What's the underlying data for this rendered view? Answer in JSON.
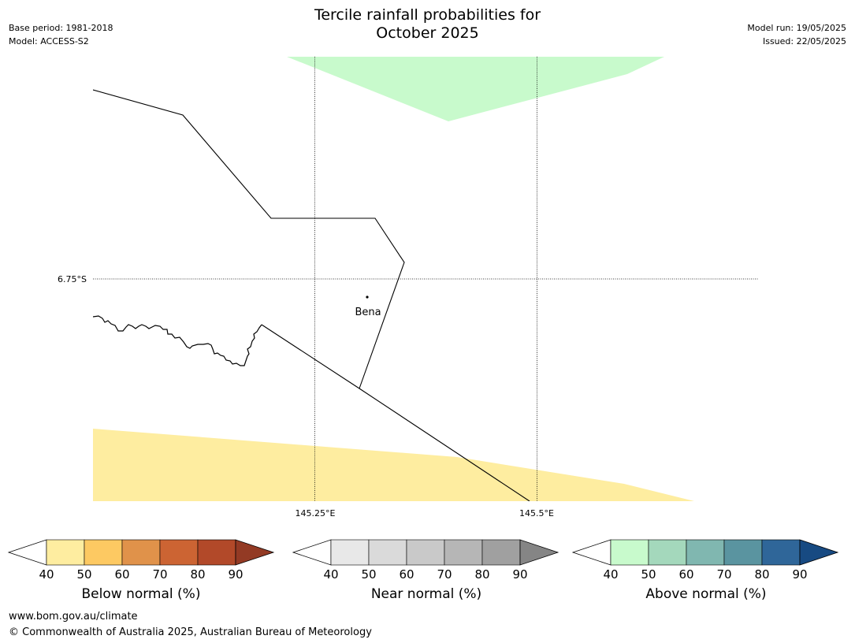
{
  "header": {
    "title_line1": "Tercile rainfall probabilities for",
    "title_line2": "October 2025",
    "base_period": "Base period: 1981-2018",
    "model": "Model: ACCESS-S2",
    "model_run": "Model run: 19/05/2025",
    "issued": "Issued: 22/05/2025"
  },
  "map": {
    "latitude_label": "6.75°S",
    "longitude_labels": [
      "145.25°E",
      "145.5°E"
    ],
    "place": "Bena",
    "regions": [
      {
        "category": "above normal",
        "probability_band": "40-50",
        "color": "#c8facc"
      },
      {
        "category": "below normal",
        "probability_band": "40-50",
        "color": "#feeda0"
      }
    ]
  },
  "legends": [
    {
      "title": "Below normal (%)",
      "ticks": [
        "40",
        "50",
        "60",
        "70",
        "80",
        "90"
      ],
      "colors": [
        "#ffffff",
        "#feeda0",
        "#fdc962",
        "#e0924a",
        "#cc6433",
        "#b24929",
        "#933a24"
      ]
    },
    {
      "title": "Near normal (%)",
      "ticks": [
        "40",
        "50",
        "60",
        "70",
        "80",
        "90"
      ],
      "colors": [
        "#ffffff",
        "#e8e8e8",
        "#dadada",
        "#c9c9c9",
        "#b6b6b6",
        "#a0a0a0",
        "#858585"
      ]
    },
    {
      "title": "Above normal (%)",
      "ticks": [
        "40",
        "50",
        "60",
        "70",
        "80",
        "90"
      ],
      "colors": [
        "#ffffff",
        "#c8facc",
        "#a4d8bc",
        "#80b7b0",
        "#5a94a0",
        "#2f6699",
        "#174a82"
      ]
    }
  ],
  "footer": {
    "url": "www.bom.gov.au/climate",
    "copyright": "© Commonwealth of Australia 2025, Australian Bureau of Meteorology"
  }
}
